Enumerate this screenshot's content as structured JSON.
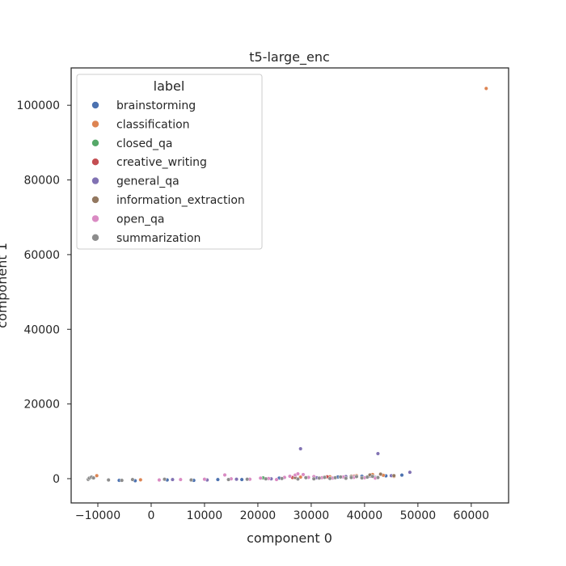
{
  "chart_data": {
    "type": "scatter",
    "title": "t5-large_enc",
    "xlabel": "component 0",
    "ylabel": "component 1",
    "xlim": [
      -15000,
      67000
    ],
    "ylim": [
      -6500,
      110000
    ],
    "xticks": [
      -10000,
      0,
      10000,
      20000,
      30000,
      40000,
      50000,
      60000
    ],
    "yticks": [
      0,
      20000,
      40000,
      60000,
      80000,
      100000
    ],
    "grid": false,
    "legend": {
      "title": "label",
      "placement": "top-left"
    },
    "series": [
      {
        "name": "brainstorming",
        "color": "#4c72b0",
        "x": [
          -11500,
          -11000,
          -6000,
          -3000,
          3000,
          8000,
          12500,
          17000,
          24000,
          30500,
          35000,
          39500,
          42000,
          44000,
          47000
        ],
        "y": [
          100,
          350,
          -450,
          -550,
          -350,
          -450,
          -250,
          -250,
          150,
          250,
          450,
          650,
          350,
          750,
          950
        ]
      },
      {
        "name": "classification",
        "color": "#dd8452",
        "x": [
          62800,
          -10200,
          -2000,
          28000,
          33500,
          38500,
          41500,
          43500,
          45500
        ],
        "y": [
          104500,
          800,
          -300,
          400,
          500,
          800,
          1100,
          900,
          600
        ]
      },
      {
        "name": "closed_qa",
        "color": "#55a868",
        "x": [
          -11300,
          21000,
          29000,
          35500,
          40500
        ],
        "y": [
          250,
          200,
          300,
          400,
          500
        ]
      },
      {
        "name": "creative_writing",
        "color": "#c44e52",
        "x": [
          26500,
          33000,
          38000
        ],
        "y": [
          300,
          500,
          600
        ]
      },
      {
        "name": "general_qa",
        "color": "#8172b3",
        "x": [
          28000,
          42500,
          48500,
          4000,
          10500,
          16000,
          22500,
          31000,
          36500,
          41000,
          45000
        ],
        "y": [
          8000,
          6700,
          1700,
          -250,
          -350,
          -150,
          -50,
          250,
          550,
          700,
          800
        ]
      },
      {
        "name": "information_extraction",
        "color": "#937860",
        "x": [
          27000,
          32500,
          37500,
          41000,
          43000,
          45500
        ],
        "y": [
          300,
          450,
          600,
          1000,
          1200,
          800
        ]
      },
      {
        "name": "open_qa",
        "color": "#da8bc3",
        "x": [
          1500,
          5500,
          10000,
          13800,
          15000,
          18500,
          20500,
          22000,
          23500,
          25000,
          26000,
          27000,
          27500,
          28500,
          29500,
          30500,
          32000,
          34000,
          36000,
          38000,
          40000,
          42000
        ],
        "y": [
          -350,
          -250,
          -150,
          1000,
          -50,
          -150,
          150,
          50,
          -250,
          350,
          650,
          950,
          1300,
          1100,
          350,
          550,
          250,
          150,
          450,
          350,
          250,
          150
        ]
      },
      {
        "name": "summarization",
        "color": "#8c8c8c",
        "x": [
          -11800,
          -11600,
          -11200,
          -10800,
          -8000,
          -5500,
          -3500,
          2500,
          7500,
          14500,
          18000,
          21500,
          24500,
          27500,
          29000,
          30500,
          31500,
          32500,
          33500,
          34500,
          35500,
          36500,
          37500,
          38500,
          39500,
          40500,
          41500,
          42500
        ],
        "y": [
          -200,
          150,
          400,
          200,
          -350,
          -450,
          -250,
          -150,
          -350,
          -250,
          -150,
          -50,
          50,
          -100,
          250,
          -50,
          150,
          350,
          50,
          250,
          450,
          100,
          300,
          550,
          200,
          400,
          600,
          300
        ]
      }
    ]
  }
}
